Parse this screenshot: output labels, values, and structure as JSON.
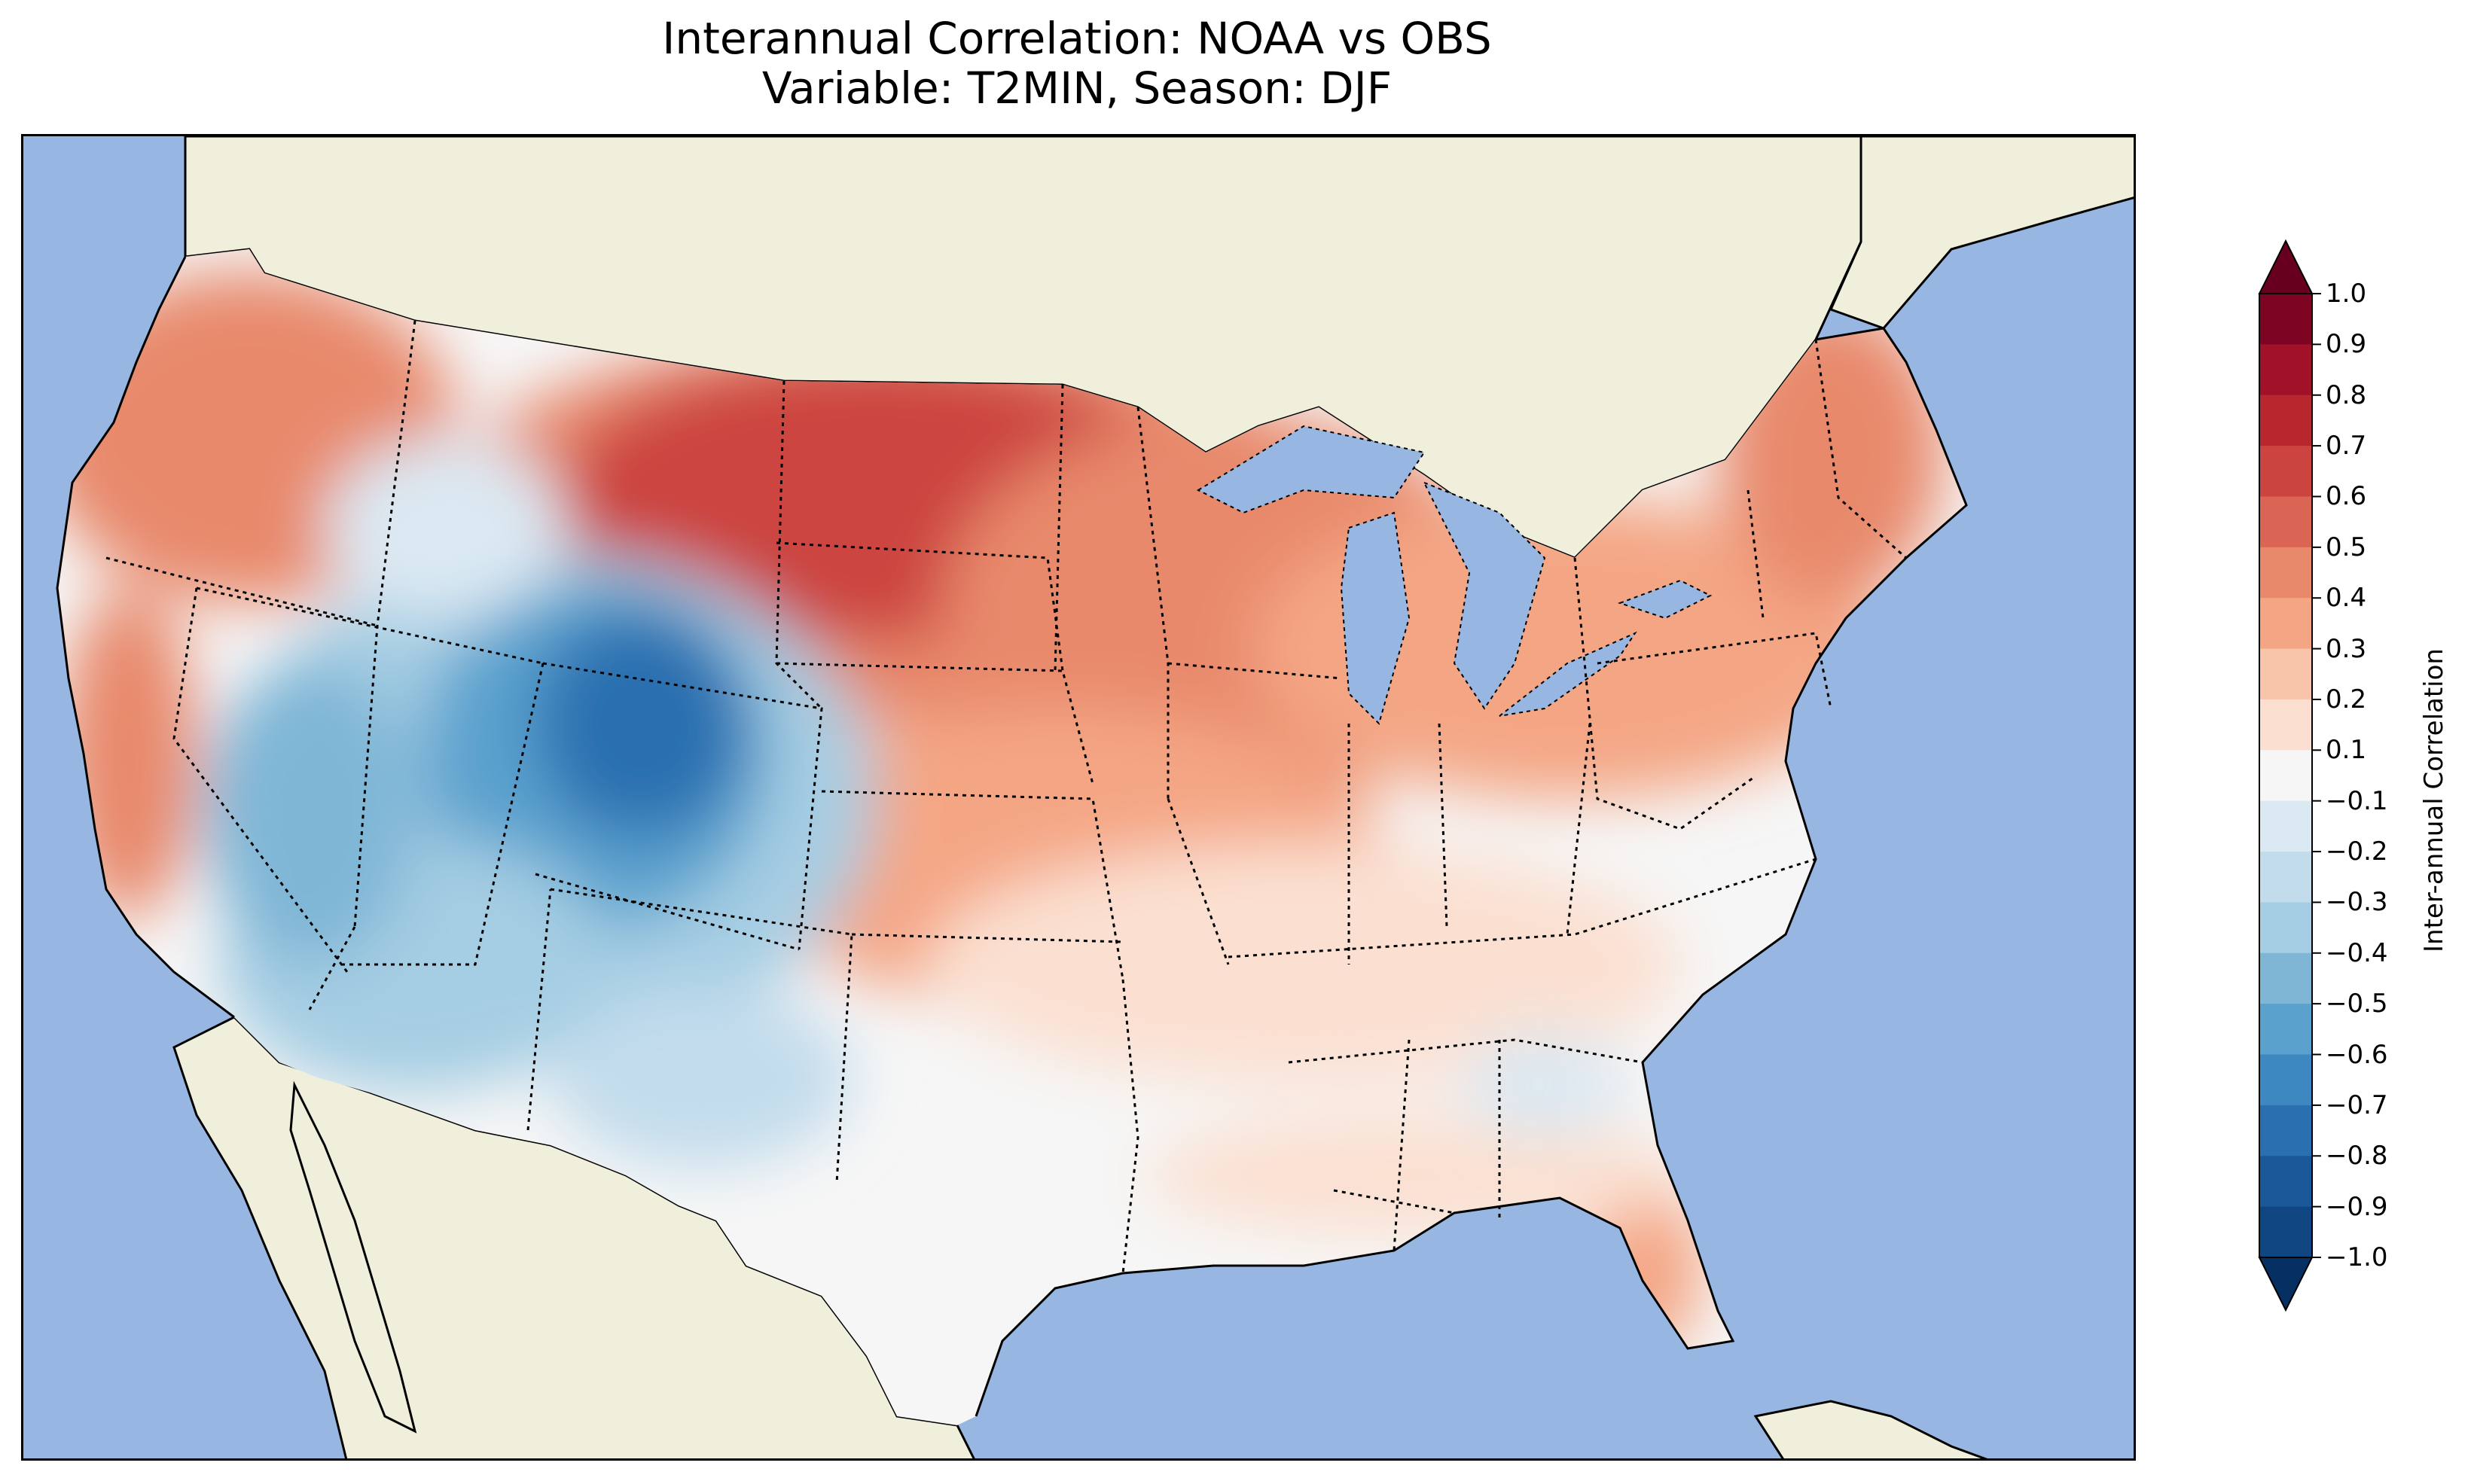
{
  "title": {
    "line1": "Interannual Correlation: NOAA vs OBS",
    "line2": "Variable: T2MIN, Season: DJF"
  },
  "colorbar": {
    "label": "Inter-annual Correlation",
    "ticks": [
      "1.0",
      "0.9",
      "0.8",
      "0.7",
      "0.6",
      "0.5",
      "0.4",
      "0.3",
      "0.2",
      "0.1",
      "−0.1",
      "−0.2",
      "−0.3",
      "−0.4",
      "−0.5",
      "−0.6",
      "−0.7",
      "−0.8",
      "−0.9",
      "−1.0"
    ],
    "colors_top_to_bottom": [
      "#7d0523",
      "#a11228",
      "#b8262e",
      "#cc4440",
      "#da6554",
      "#e8896c",
      "#f4a684",
      "#f8c5aa",
      "#fbe0d1",
      "#f6f6f6",
      "#dbe9f3",
      "#c2dcec",
      "#a5cde3",
      "#7fb6d6",
      "#5aa1ce",
      "#3d88c0",
      "#2a70b0",
      "#1b589a",
      "#0f4580"
    ],
    "extend_top_color": "#67001f",
    "extend_bottom_color": "#053061"
  },
  "map": {
    "ocean_color": "#97b6e1",
    "land_color": "#efefdb",
    "domain": "Contiguous United States"
  }
}
